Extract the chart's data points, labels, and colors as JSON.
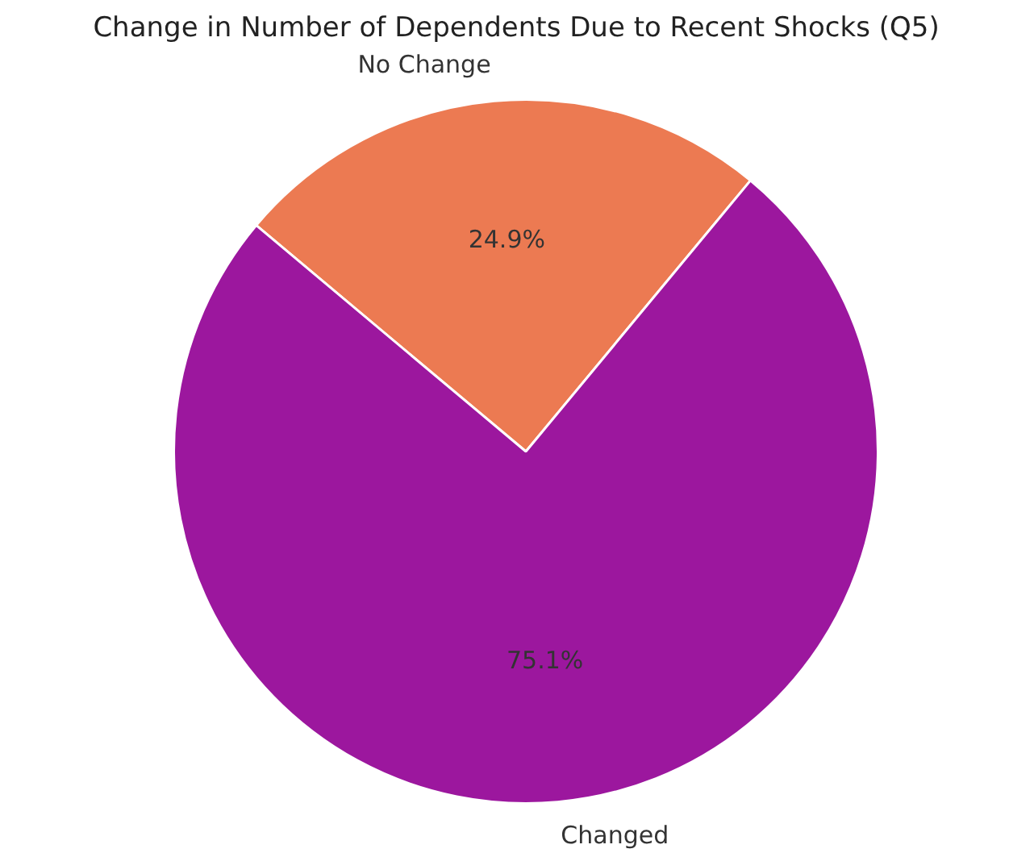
{
  "chart_data": {
    "type": "pie",
    "title": "Change in Number of Dependents Due to Recent Shocks (Q5)",
    "categories": [
      "No Change",
      "Changed"
    ],
    "values": [
      24.9,
      75.1
    ],
    "colors": [
      "#ec7a52",
      "#9c179e"
    ],
    "value_labels": [
      "24.9%",
      "75.1%"
    ],
    "legend": false
  }
}
